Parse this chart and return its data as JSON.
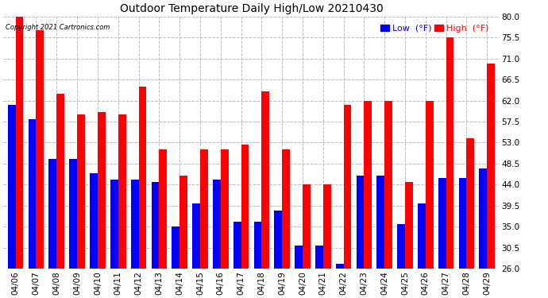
{
  "title": "Outdoor Temperature Daily High/Low 20210430",
  "copyright": "Copyright 2021 Cartronics.com",
  "legend_low_label": "Low  (°F)",
  "legend_high_label": "High  (°F)",
  "dates": [
    "04/06",
    "04/07",
    "04/08",
    "04/09",
    "04/10",
    "04/11",
    "04/12",
    "04/13",
    "04/14",
    "04/15",
    "04/16",
    "04/17",
    "04/18",
    "04/19",
    "04/20",
    "04/21",
    "04/22",
    "04/23",
    "04/24",
    "04/25",
    "04/26",
    "04/27",
    "04/28",
    "04/29"
  ],
  "highs": [
    80.0,
    77.0,
    63.5,
    59.0,
    59.5,
    59.0,
    65.0,
    51.5,
    46.0,
    51.5,
    51.5,
    52.5,
    64.0,
    51.5,
    44.0,
    44.0,
    61.0,
    62.0,
    62.0,
    44.5,
    62.0,
    75.5,
    54.0,
    70.0
  ],
  "lows": [
    61.0,
    58.0,
    49.5,
    49.5,
    46.5,
    45.0,
    45.0,
    44.5,
    35.0,
    40.0,
    45.0,
    36.0,
    36.0,
    38.5,
    31.0,
    31.0,
    27.0,
    46.0,
    46.0,
    35.5,
    40.0,
    45.5,
    45.5,
    47.5
  ],
  "high_color": "#ff0000",
  "low_color": "#0000ff",
  "ylim_min": 26.0,
  "ylim_max": 80.0,
  "yticks": [
    26.0,
    30.5,
    35.0,
    39.5,
    44.0,
    48.5,
    53.0,
    57.5,
    62.0,
    66.5,
    71.0,
    75.5,
    80.0
  ],
  "background_color": "#ffffff",
  "grid_color": "#bbbbbb",
  "title_fontsize": 10,
  "tick_fontsize": 7.5,
  "legend_fontsize": 8,
  "bar_width": 0.38
}
